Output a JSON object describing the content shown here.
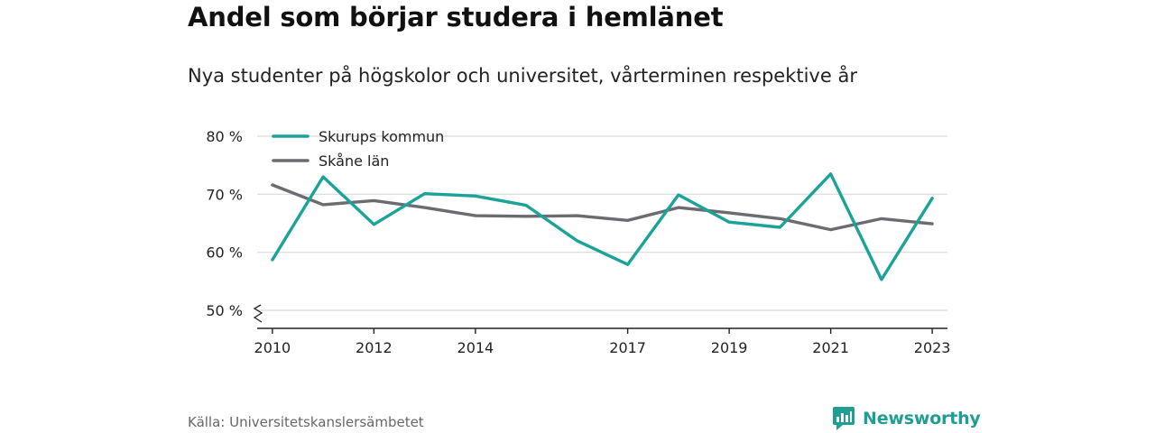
{
  "header": {
    "title": "Andel som börjar studera i hemlänet",
    "subtitle": "Nya studenter på högskolor och universitet, vårterminen respektive år"
  },
  "footer": {
    "source": "Källa: Universitetskanslersämbetet",
    "brand": "Newsworthy"
  },
  "colors": {
    "skurup": "#1ba39a",
    "skane": "#6e6a72",
    "grid": "#d9d9d9",
    "brand": "#1f9e92"
  },
  "chart_data": {
    "type": "line",
    "x": [
      2010,
      2011,
      2012,
      2013,
      2014,
      2015,
      2016,
      2017,
      2018,
      2019,
      2020,
      2021,
      2022,
      2023
    ],
    "x_tick_labels": [
      "2010",
      "2012",
      "2014",
      "2017",
      "2019",
      "2021",
      "2023"
    ],
    "y_tick_labels": [
      "50 %",
      "60 %",
      "70 %",
      "80 %"
    ],
    "y_ticks": [
      50,
      60,
      70,
      80
    ],
    "ylim": [
      47,
      82
    ],
    "xlim": [
      2009.7,
      2023.3
    ],
    "y_axis_break": true,
    "grid": true,
    "legend_position": "top-left",
    "series": [
      {
        "name": "Skurups kommun",
        "color": "#1ba39a",
        "values": [
          58.7,
          73.0,
          64.8,
          70.1,
          69.7,
          68.1,
          62.0,
          57.9,
          69.9,
          65.2,
          64.3,
          73.5,
          55.3,
          69.3
        ]
      },
      {
        "name": "Skåne län",
        "color": "#6e6a72",
        "values": [
          71.6,
          68.2,
          68.9,
          67.7,
          66.3,
          66.2,
          66.3,
          65.5,
          67.7,
          66.8,
          65.8,
          63.9,
          65.8,
          64.9
        ]
      }
    ]
  }
}
